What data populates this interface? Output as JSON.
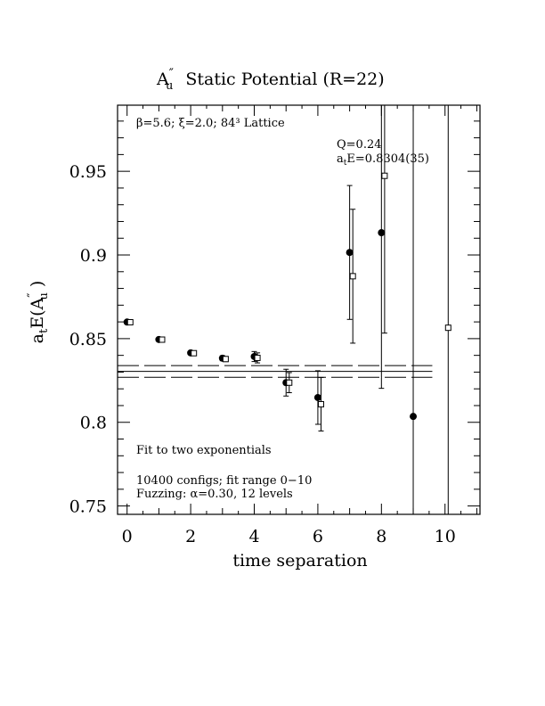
{
  "chart_data": {
    "type": "scatter",
    "title": "A″u  Static Potential (R=22)",
    "title_parts": {
      "sym": "A",
      "sup": "″",
      "sub": "u",
      "rest": "Static Potential (R=22)"
    },
    "xlabel": "time separation",
    "ylabel_parts": {
      "a": "a",
      "t": "t",
      "E": "E(A",
      "pp": "″",
      "u": "u",
      "close": " )"
    },
    "xlim": [
      -0.3,
      11.1
    ],
    "ylim": [
      0.745,
      0.9895
    ],
    "x_ticks": [
      0,
      2,
      4,
      6,
      8,
      10
    ],
    "x_tick_labels": [
      "0",
      "2",
      "4",
      "6",
      "8",
      "10"
    ],
    "y_ticks": [
      0.75,
      0.8,
      0.85,
      0.9,
      0.95
    ],
    "y_tick_labels": [
      "0.75",
      "0.8",
      "0.85",
      "0.9",
      "0.95"
    ],
    "annotations": {
      "lattice": "β=5.6; ξ=2.0; 84³ Lattice",
      "q": "Q=0.24",
      "energy_a": "a",
      "energy_t": "t",
      "energy_rest": "E=0.8304(35)",
      "fit": "Fit to two exponentials",
      "configs": "10400 configs; fit range 0−10",
      "fuzzing": "Fuzzing: α=0.30, 12 levels"
    },
    "fit": {
      "value": 0.8304,
      "error": 0.0035,
      "x_range": [
        -0.3,
        9.6
      ]
    },
    "series": [
      {
        "marker": "filled-circle",
        "points": [
          {
            "x": 0,
            "y": 0.8599,
            "err": 0.0008
          },
          {
            "x": 1,
            "y": 0.8495,
            "err": 0.0008
          },
          {
            "x": 2,
            "y": 0.8415,
            "err": 0.001
          },
          {
            "x": 3,
            "y": 0.8383,
            "err": 0.0015
          },
          {
            "x": 4,
            "y": 0.8393,
            "err": 0.003
          },
          {
            "x": 5,
            "y": 0.8237,
            "err": 0.008
          },
          {
            "x": 6,
            "y": 0.8148,
            "err": 0.016
          },
          {
            "x": 7,
            "y": 0.9015,
            "err": 0.04
          },
          {
            "x": 8,
            "y": 0.9133,
            "err": 0.093
          },
          {
            "x": 9,
            "y": 0.8035,
            "err": 0.27
          }
        ]
      },
      {
        "marker": "open-square",
        "points": [
          {
            "x": 0.1,
            "y": 0.8598,
            "err": 0.0008
          },
          {
            "x": 1.1,
            "y": 0.8494,
            "err": 0.0008
          },
          {
            "x": 2.1,
            "y": 0.8413,
            "err": 0.001
          },
          {
            "x": 3.1,
            "y": 0.8378,
            "err": 0.0015
          },
          {
            "x": 4.1,
            "y": 0.8385,
            "err": 0.003
          },
          {
            "x": 5.1,
            "y": 0.8237,
            "err": 0.006
          },
          {
            "x": 6.1,
            "y": 0.8108,
            "err": 0.016
          },
          {
            "x": 7.1,
            "y": 0.8873,
            "err": 0.04
          },
          {
            "x": 8.1,
            "y": 0.9473,
            "err": 0.094
          },
          {
            "x": 10.1,
            "y": 0.8565,
            "err": 0.6
          }
        ]
      }
    ]
  }
}
